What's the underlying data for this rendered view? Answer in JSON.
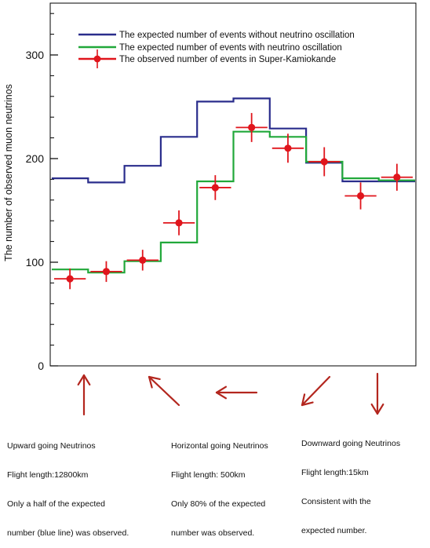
{
  "chart_data": {
    "type": "line",
    "ylabel": "The number of observed muon neutrinos",
    "ylim": [
      0,
      350
    ],
    "yticks": [
      0,
      100,
      200,
      300
    ],
    "grid": false,
    "legend_position": "top",
    "series": [
      {
        "name": "The expected number of events without neutrino oscillation",
        "color": "#2a2d8c",
        "kind": "step",
        "values": [
          181,
          177,
          193,
          221,
          255,
          258,
          229,
          196,
          178,
          178
        ]
      },
      {
        "name": "The expected number of events with neutrino oscillation",
        "color": "#21a83a",
        "kind": "step",
        "values": [
          93,
          90,
          101,
          119,
          178,
          226,
          221,
          197,
          181,
          179
        ]
      },
      {
        "name": "The observed number of events in Super-Kamiokande",
        "color": "#e0151c",
        "kind": "errorbar",
        "values": [
          84,
          91,
          102,
          138,
          172,
          230,
          210,
          197,
          164,
          182
        ],
        "errors": [
          10,
          10,
          10,
          12,
          12,
          14,
          14,
          14,
          13,
          13
        ]
      }
    ]
  },
  "annotations": [
    {
      "lines": [
        "Upward going Neutrinos",
        "Flight length:12800km",
        "Only a half of the expected",
        "number (blue line) was observed."
      ]
    },
    {
      "lines": [
        "Horizontal going Neutrinos",
        "Flight length: 500km",
        "Only 80% of the expected",
        "number was observed."
      ]
    },
    {
      "lines": [
        "Downward going Neutrinos",
        "Flight length:15km",
        "Consistent with the",
        "expected number."
      ]
    }
  ],
  "arrow_color": "#b3261e"
}
